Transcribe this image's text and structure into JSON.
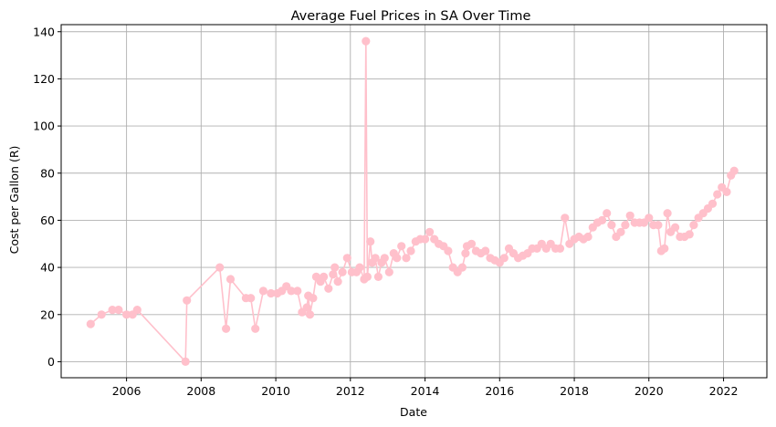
{
  "chart_data": {
    "type": "line",
    "title": "Average Fuel Prices in SA Over Time",
    "xlabel": "Date",
    "ylabel": "Cost per Gallon (R)",
    "x_axis_type": "date",
    "xlim": [
      "2004-04-01",
      "2023-03-01"
    ],
    "ylim": [
      -6.8,
      143
    ],
    "x_ticks": [
      "2006-01-01",
      "2008-01-01",
      "2010-01-01",
      "2012-01-01",
      "2014-01-01",
      "2016-01-01",
      "2018-01-01",
      "2020-01-01",
      "2022-01-01"
    ],
    "x_tick_labels": [
      "2006",
      "2008",
      "2010",
      "2012",
      "2014",
      "2016",
      "2018",
      "2020",
      "2022"
    ],
    "y_ticks": [
      0,
      20,
      40,
      60,
      80,
      100,
      120,
      140
    ],
    "y_tick_labels": [
      "0",
      "20",
      "40",
      "60",
      "80",
      "100",
      "120",
      "140"
    ],
    "grid": true,
    "legend": "none",
    "series": [
      {
        "color": "#ffc0cb",
        "marker": "circle",
        "x": [
          "2005-01-15",
          "2005-05-01",
          "2005-08-15",
          "2005-10-15",
          "2006-01-01",
          "2006-03-01",
          "2006-04-15",
          "2007-08-01",
          "2007-08-15",
          "2008-07-01",
          "2008-09-01",
          "2008-10-15",
          "2009-03-15",
          "2009-05-01",
          "2009-06-15",
          "2009-09-01",
          "2009-11-15",
          "2010-01-15",
          "2010-03-01",
          "2010-04-15",
          "2010-06-01",
          "2010-08-01",
          "2010-09-15",
          "2010-11-01",
          "2010-11-15",
          "2010-12-01",
          "2011-01-01",
          "2011-02-01",
          "2011-03-15",
          "2011-04-15",
          "2011-06-01",
          "2011-07-15",
          "2011-08-01",
          "2011-09-01",
          "2011-10-15",
          "2011-12-01",
          "2012-01-15",
          "2012-03-01",
          "2012-04-01",
          "2012-05-15",
          "2012-06-01",
          "2012-06-15",
          "2012-07-15",
          "2012-08-01",
          "2012-09-01",
          "2012-10-01",
          "2012-11-01",
          "2012-12-01",
          "2013-01-15",
          "2013-03-01",
          "2013-04-01",
          "2013-05-15",
          "2013-07-01",
          "2013-08-15",
          "2013-10-01",
          "2013-11-15",
          "2014-01-01",
          "2014-02-15",
          "2014-04-01",
          "2014-05-15",
          "2014-07-01",
          "2014-08-15",
          "2014-10-01",
          "2014-11-15",
          "2015-01-01",
          "2015-02-01",
          "2015-02-15",
          "2015-04-01",
          "2015-05-15",
          "2015-07-01",
          "2015-08-15",
          "2015-10-01",
          "2015-11-15",
          "2016-01-01",
          "2016-02-15",
          "2016-04-01",
          "2016-05-15",
          "2016-07-01",
          "2016-08-15",
          "2016-10-01",
          "2016-11-15",
          "2017-01-01",
          "2017-02-15",
          "2017-04-01",
          "2017-05-15",
          "2017-07-01",
          "2017-08-15",
          "2017-10-01",
          "2017-11-15",
          "2018-01-01",
          "2018-02-15",
          "2018-04-01",
          "2018-05-15",
          "2018-07-01",
          "2018-08-15",
          "2018-10-01",
          "2018-11-15",
          "2019-01-01",
          "2019-02-15",
          "2019-04-01",
          "2019-05-15",
          "2019-07-01",
          "2019-08-15",
          "2019-10-01",
          "2019-11-15",
          "2020-01-01",
          "2020-02-15",
          "2020-04-01",
          "2020-05-01",
          "2020-06-01",
          "2020-07-01",
          "2020-08-01",
          "2020-09-15",
          "2020-11-01",
          "2020-12-15",
          "2021-02-01",
          "2021-03-15",
          "2021-05-01",
          "2021-06-15",
          "2021-08-01",
          "2021-09-15",
          "2021-11-01",
          "2021-12-15",
          "2022-02-01",
          "2022-03-15",
          "2022-04-15"
        ],
        "y": [
          16,
          20,
          22,
          22,
          20,
          20,
          22,
          0,
          26,
          40,
          14,
          35,
          27,
          27,
          14,
          30,
          29,
          29,
          30,
          32,
          30,
          30,
          21,
          23,
          28,
          20,
          27,
          36,
          34,
          36,
          31,
          37,
          40,
          34,
          38,
          44,
          38,
          38,
          40,
          35,
          136,
          36,
          51,
          42,
          44,
          36,
          42,
          44,
          38,
          46,
          44,
          49,
          44,
          47,
          51,
          52,
          52,
          55,
          52,
          50,
          49,
          47,
          40,
          38,
          40,
          46,
          49,
          50,
          47,
          46,
          47,
          44,
          43,
          42,
          44,
          48,
          46,
          44,
          45,
          46,
          48,
          48,
          50,
          48,
          50,
          48,
          48,
          61,
          50,
          52,
          53,
          52,
          53,
          57,
          59,
          60,
          63,
          58,
          53,
          55,
          58,
          62,
          59,
          59,
          59,
          61,
          58,
          58,
          47,
          48,
          63,
          55,
          57,
          53,
          53,
          54,
          58,
          61,
          63,
          65,
          67,
          71,
          74,
          72,
          79,
          81
        ]
      }
    ]
  }
}
